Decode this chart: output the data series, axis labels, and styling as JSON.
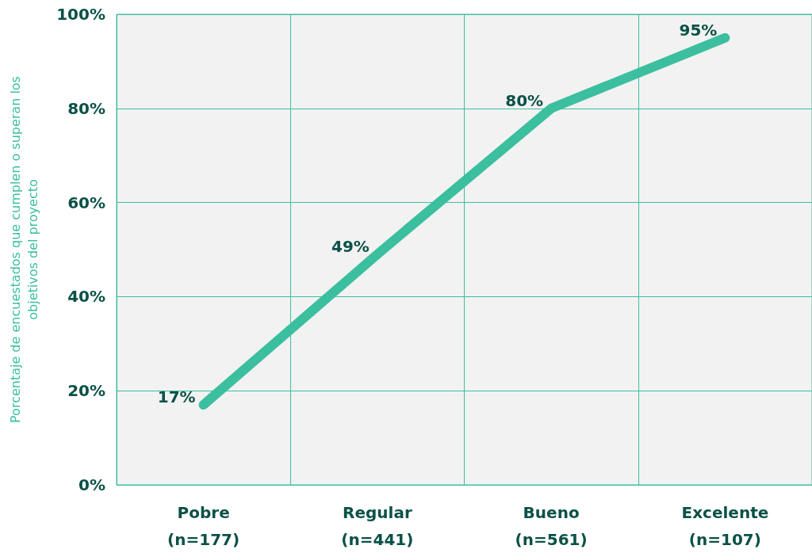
{
  "chart_data": {
    "type": "line",
    "ylabel": "Porcentaje de encuestados que cumplen o superan los\nobjetivos del proyecto",
    "categories": [
      "Pobre\n(n=177)",
      "Regular\n(n=441)",
      "Bueno\n(n=561)",
      "Excelente\n(n=107)"
    ],
    "values": [
      17,
      49,
      80,
      95
    ],
    "value_labels": [
      "17%",
      "49%",
      "80%",
      "95%"
    ],
    "color": "#3bbf9e",
    "ylim": [
      0,
      100
    ],
    "yticks": [
      {
        "value": 0,
        "label": "0%"
      },
      {
        "value": 20,
        "label": "20%"
      },
      {
        "value": 40,
        "label": "40%"
      },
      {
        "value": 60,
        "label": "60%"
      },
      {
        "value": 80,
        "label": "80%"
      },
      {
        "value": 100,
        "label": "100%"
      }
    ],
    "grid": true,
    "marker": "none",
    "line_style": "solid"
  }
}
